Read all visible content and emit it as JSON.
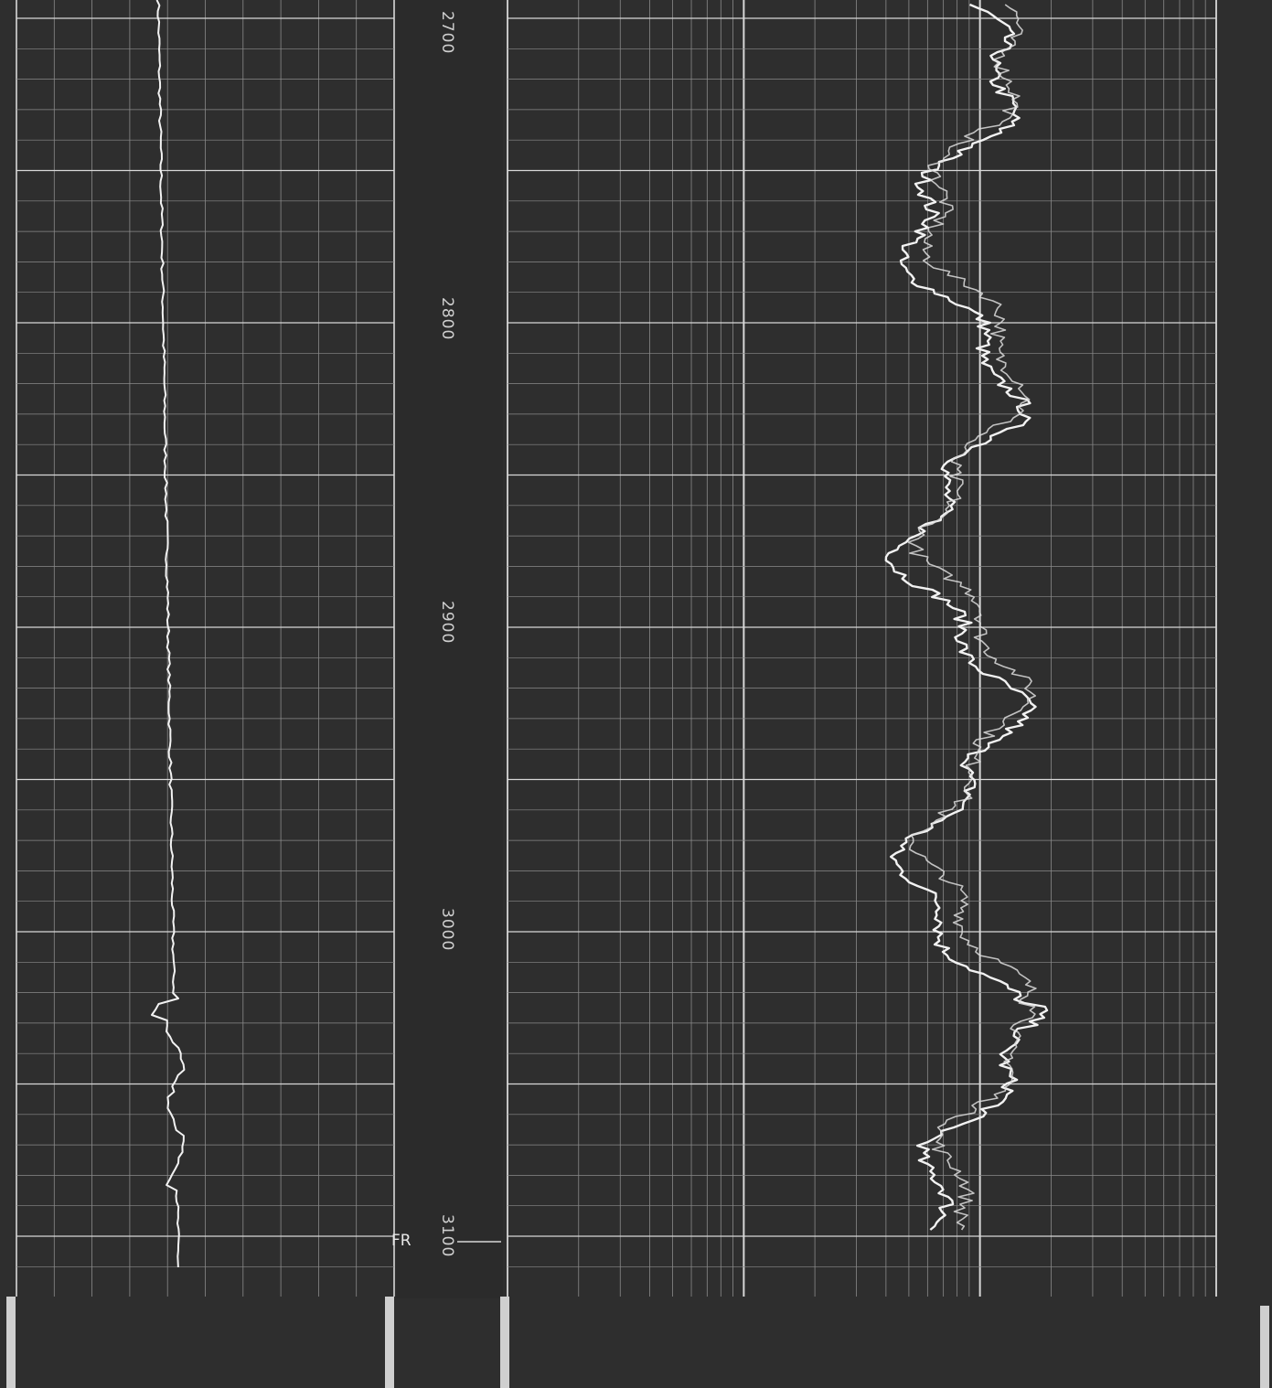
{
  "log": {
    "depth_labels": [
      "2700",
      "2800",
      "2900",
      "3000",
      "3100"
    ],
    "marker_label": "FR",
    "colors": {
      "background": "#2e2e2e",
      "grid_minor": "#8a8a8a",
      "grid_major": "#d8d8d8",
      "trace": "#f2f2f2",
      "depth_track": "#2b2b2b"
    }
  }
}
